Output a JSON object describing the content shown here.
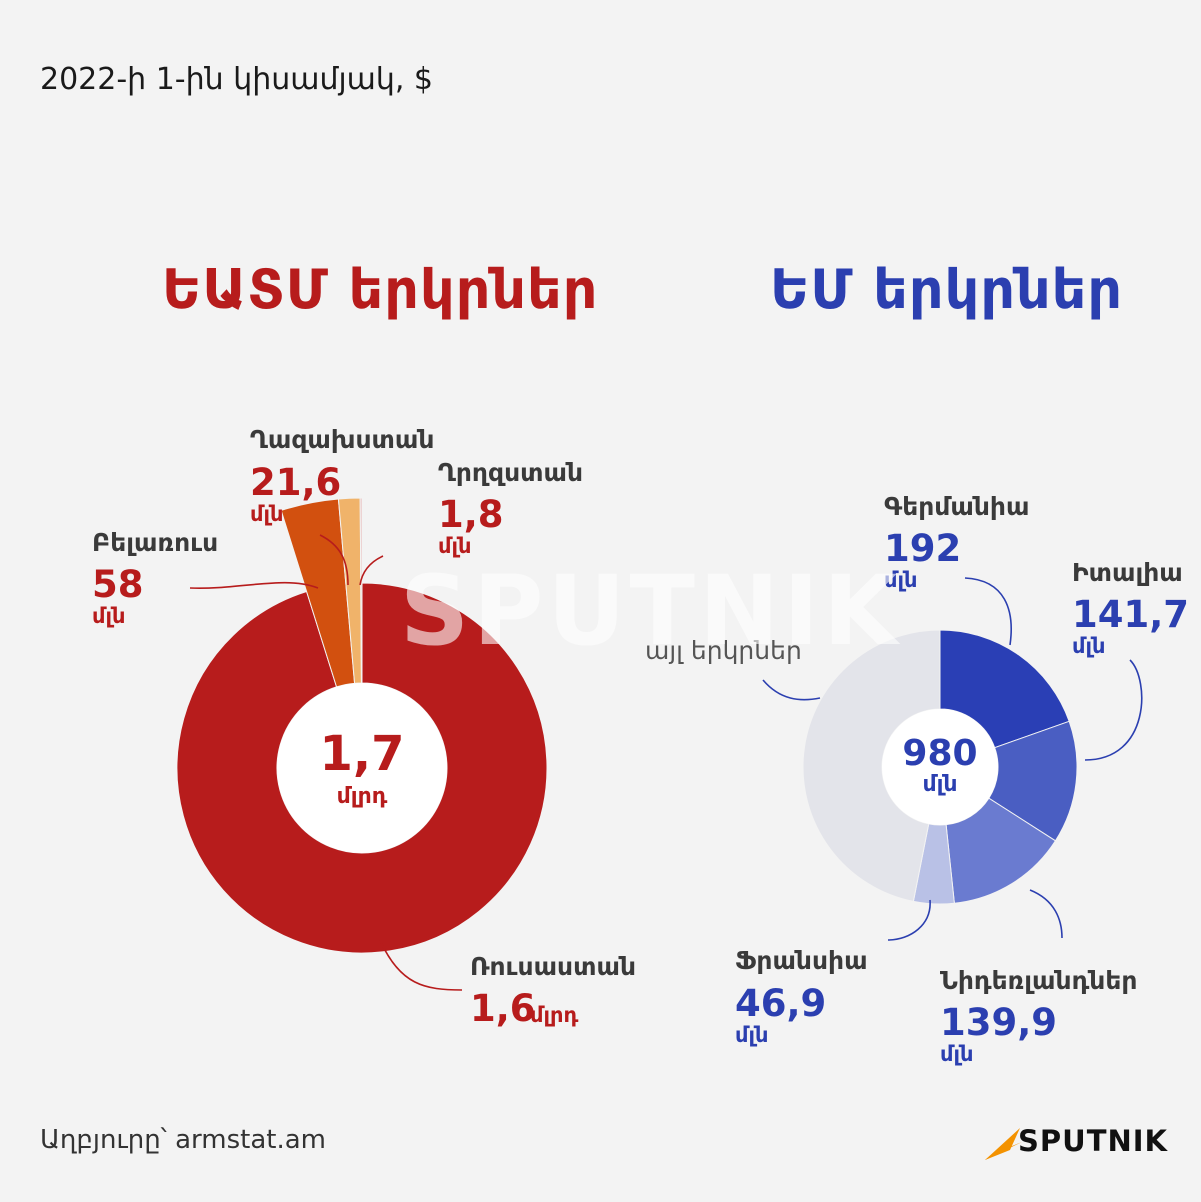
{
  "subtitle": "2022-ի 1-ին կիսամյակ, $",
  "eaeu": {
    "title": "ԵԱՏՄ երկրներ",
    "center": {
      "value": "1,7",
      "unit": "մլրդ"
    },
    "color": "#b71c1c",
    "labels": {
      "russia": {
        "name": "Ռուսաստան",
        "value": "1,6",
        "unit": "մլրդ"
      },
      "belarus": {
        "name": "Բելառուս",
        "value": "58",
        "unit": "մլն"
      },
      "kazakhstan": {
        "name": "Ղազախստան",
        "value": "21,6",
        "unit": "մլն"
      },
      "kyrgyzstan": {
        "name": "Ղրղզստան",
        "value": "1,8",
        "unit": "մլն"
      }
    }
  },
  "eu": {
    "title": "ԵՄ երկրներ",
    "center": {
      "value": "980",
      "unit": "մլն"
    },
    "color": "#2b3fb0",
    "labels": {
      "germany": {
        "name": "Գերմանիա",
        "value": "192",
        "unit": "մլն"
      },
      "italy": {
        "name": "Իտալիա",
        "value": "141,7",
        "unit": "մլն"
      },
      "netherlands": {
        "name": "Նիդեռլանդներ",
        "value": "139,9",
        "unit": "մլն"
      },
      "france": {
        "name": "Ֆրանսիա",
        "value": "46,9",
        "unit": "մլն"
      },
      "other": {
        "name": "այլ երկրներ"
      }
    }
  },
  "chart_data": [
    {
      "type": "pie",
      "title": "ԵԱՏՄ երկրներ",
      "unit": "մլն $",
      "total": 1700,
      "categories": [
        "Ռուսաստան",
        "Բելառուս",
        "Ղազախստան",
        "Ղրղզստան"
      ],
      "values": [
        1600,
        58,
        21.6,
        1.8
      ],
      "colors": [
        "#b71c1c",
        "#d2500f",
        "#f0b36a",
        "#e6b3b3"
      ]
    },
    {
      "type": "pie",
      "title": "ԵՄ երկրներ",
      "unit": "մլն $",
      "total": 980,
      "categories": [
        "Գերմանիա",
        "Իտալիա",
        "Նիդեռլանդներ",
        "Ֆրանսիա",
        "այլ երկրներ"
      ],
      "values": [
        192,
        141.7,
        139.9,
        46.9,
        459.5
      ],
      "colors": [
        "#2a3fb5",
        "#4a5ec2",
        "#6a7bd0",
        "#b9c1e6",
        "#e3e4ea"
      ]
    }
  ],
  "source": "Աղբյուրը՝ armstat.am",
  "logo": {
    "text": "SPUTNIK",
    "color": "#f39200"
  },
  "watermark": "SPUTNIK"
}
